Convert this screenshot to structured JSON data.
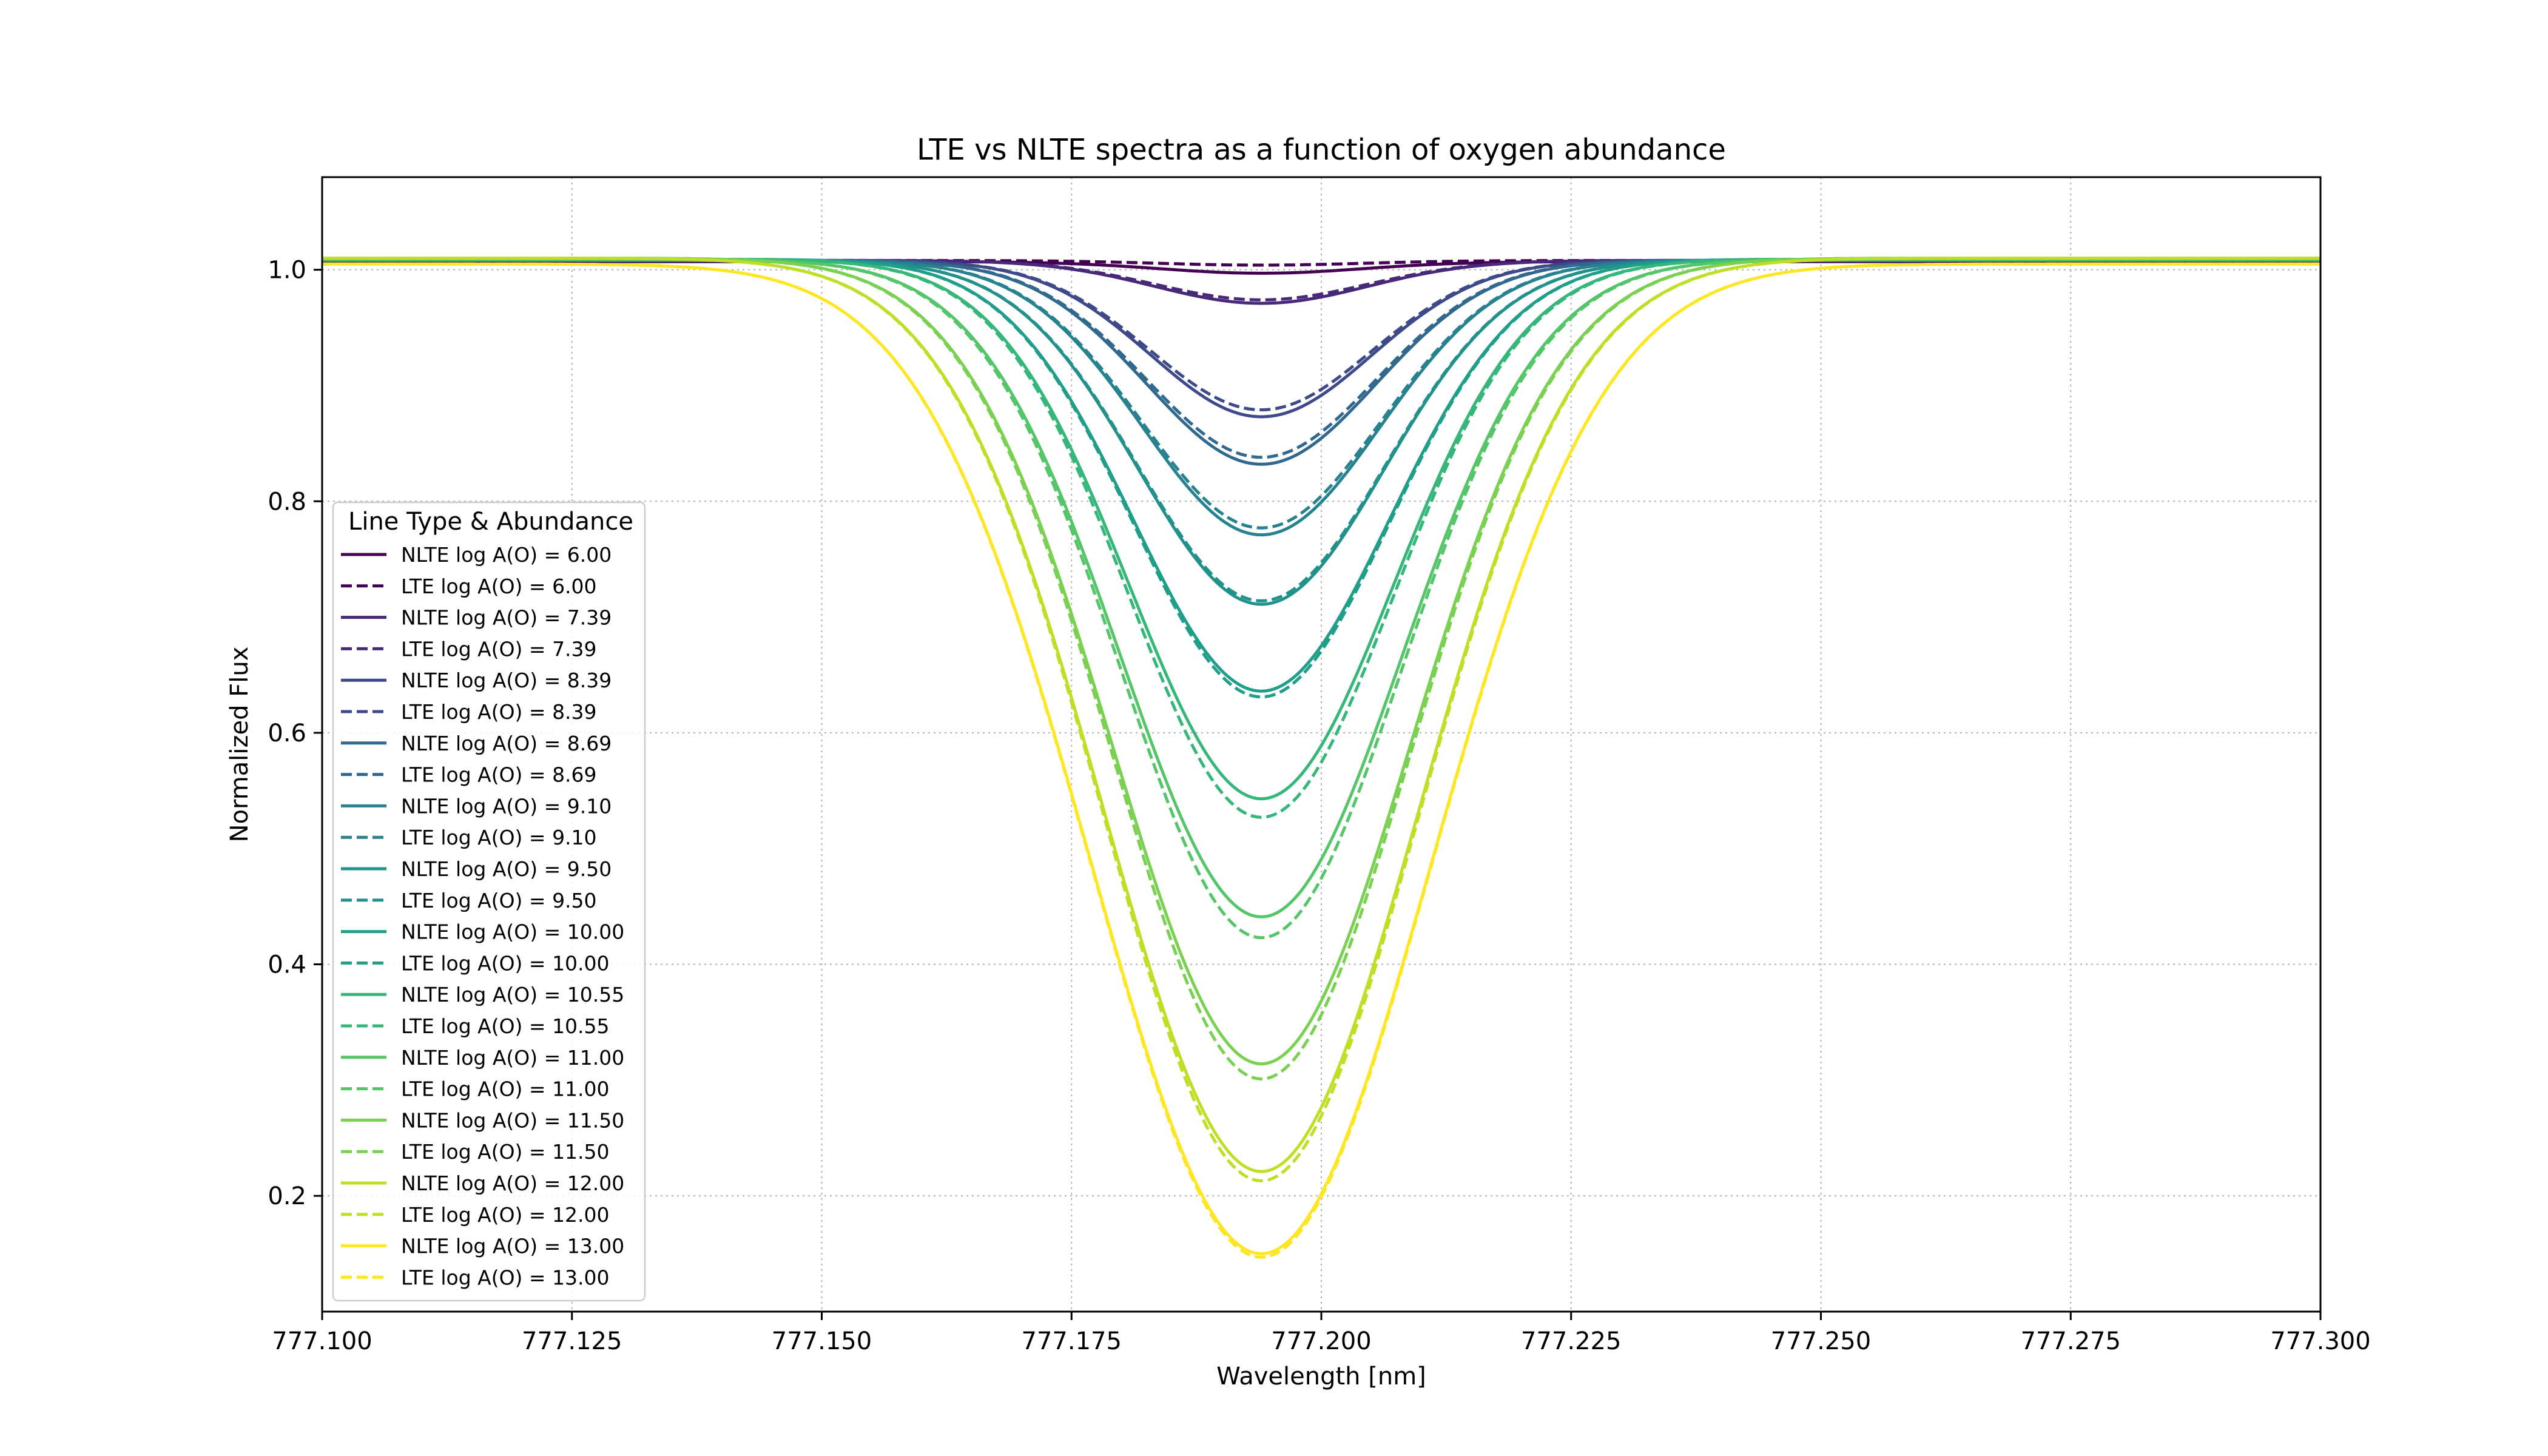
{
  "chart_data": {
    "type": "line",
    "title": "LTE vs NLTE spectra as a function of oxygen abundance",
    "xlabel": "Wavelength [nm]",
    "ylabel": "Normalized Flux",
    "xlim": [
      777.1,
      777.3
    ],
    "ylim": [
      0.1,
      1.08
    ],
    "grid": true,
    "line_center": 777.194,
    "x_ticks": [
      "777.100",
      "777.125",
      "777.150",
      "777.175",
      "777.200",
      "777.225",
      "777.250",
      "777.275",
      "777.300"
    ],
    "x_tick_values": [
      777.1,
      777.125,
      777.15,
      777.175,
      777.2,
      777.225,
      777.25,
      777.275,
      777.3
    ],
    "y_ticks": [
      "0.2",
      "0.4",
      "0.6",
      "0.8",
      "1.0"
    ],
    "y_tick_values": [
      0.2,
      0.4,
      0.6,
      0.8,
      1.0
    ],
    "legend": {
      "title": "Line Type & Abundance",
      "placement": "lower-left"
    },
    "series": [
      {
        "name": "NLTE log A(O) = 6.00",
        "style": "solid",
        "color": "#440154",
        "continuum": 1.007,
        "min_flux": 0.997,
        "fwhm": 0.024
      },
      {
        "name": "LTE  log A(O) = 6.00",
        "style": "dashed",
        "color": "#440154",
        "continuum": 1.008,
        "min_flux": 1.004,
        "fwhm": 0.024
      },
      {
        "name": "NLTE log A(O) = 7.39",
        "style": "solid",
        "color": "#482878",
        "continuum": 1.008,
        "min_flux": 0.971,
        "fwhm": 0.025
      },
      {
        "name": "LTE  log A(O) = 7.39",
        "style": "dashed",
        "color": "#482878",
        "continuum": 1.008,
        "min_flux": 0.974,
        "fwhm": 0.025
      },
      {
        "name": "NLTE log A(O) = 8.39",
        "style": "solid",
        "color": "#3e4989",
        "continuum": 1.008,
        "min_flux": 0.873,
        "fwhm": 0.026
      },
      {
        "name": "LTE  log A(O) = 8.39",
        "style": "dashed",
        "color": "#3e4989",
        "continuum": 1.008,
        "min_flux": 0.879,
        "fwhm": 0.026
      },
      {
        "name": "NLTE log A(O) = 8.69",
        "style": "solid",
        "color": "#31688e",
        "continuum": 1.008,
        "min_flux": 0.832,
        "fwhm": 0.027
      },
      {
        "name": "LTE  log A(O) = 8.69",
        "style": "dashed",
        "color": "#31688e",
        "continuum": 1.008,
        "min_flux": 0.838,
        "fwhm": 0.027
      },
      {
        "name": "NLTE log A(O) = 9.10",
        "style": "solid",
        "color": "#26828e",
        "continuum": 1.008,
        "min_flux": 0.771,
        "fwhm": 0.028
      },
      {
        "name": "LTE  log A(O) = 9.10",
        "style": "dashed",
        "color": "#26828e",
        "continuum": 1.008,
        "min_flux": 0.777,
        "fwhm": 0.028
      },
      {
        "name": "NLTE log A(O) = 9.50",
        "style": "solid",
        "color": "#21918c",
        "continuum": 1.008,
        "min_flux": 0.711,
        "fwhm": 0.029
      },
      {
        "name": "LTE  log A(O) = 9.50",
        "style": "dashed",
        "color": "#21918c",
        "continuum": 1.008,
        "min_flux": 0.714,
        "fwhm": 0.029
      },
      {
        "name": "NLTE log A(O) = 10.00",
        "style": "solid",
        "color": "#1f9e89",
        "continuum": 1.009,
        "min_flux": 0.636,
        "fwhm": 0.03
      },
      {
        "name": "LTE  log A(O) = 10.00",
        "style": "dashed",
        "color": "#1f9e89",
        "continuum": 1.009,
        "min_flux": 0.631,
        "fwhm": 0.03
      },
      {
        "name": "NLTE log A(O) = 10.55",
        "style": "solid",
        "color": "#35b779",
        "continuum": 1.009,
        "min_flux": 0.543,
        "fwhm": 0.031
      },
      {
        "name": "LTE  log A(O) = 10.55",
        "style": "dashed",
        "color": "#35b779",
        "continuum": 1.009,
        "min_flux": 0.527,
        "fwhm": 0.031
      },
      {
        "name": "NLTE log A(O) = 11.00",
        "style": "solid",
        "color": "#54c568",
        "continuum": 1.009,
        "min_flux": 0.441,
        "fwhm": 0.033
      },
      {
        "name": "LTE  log A(O) = 11.00",
        "style": "dashed",
        "color": "#54c568",
        "continuum": 1.009,
        "min_flux": 0.423,
        "fwhm": 0.033
      },
      {
        "name": "NLTE log A(O) = 11.50",
        "style": "solid",
        "color": "#7ad151",
        "continuum": 1.01,
        "min_flux": 0.314,
        "fwhm": 0.035
      },
      {
        "name": "LTE  log A(O) = 11.50",
        "style": "dashed",
        "color": "#7ad151",
        "continuum": 1.01,
        "min_flux": 0.301,
        "fwhm": 0.035
      },
      {
        "name": "NLTE log A(O) = 12.00",
        "style": "solid",
        "color": "#bddf26",
        "continuum": 1.01,
        "min_flux": 0.221,
        "fwhm": 0.037
      },
      {
        "name": "LTE  log A(O) = 12.00",
        "style": "dashed",
        "color": "#bddf26",
        "continuum": 1.01,
        "min_flux": 0.213,
        "fwhm": 0.037
      },
      {
        "name": "NLTE log A(O) = 13.00",
        "style": "solid",
        "color": "#fde725",
        "continuum": 1.005,
        "min_flux": 0.15,
        "fwhm": 0.04
      },
      {
        "name": "LTE  log A(O) = 13.00",
        "style": "dashed",
        "color": "#fde725",
        "continuum": 1.005,
        "min_flux": 0.147,
        "fwhm": 0.04
      }
    ]
  }
}
